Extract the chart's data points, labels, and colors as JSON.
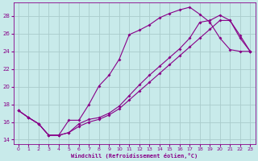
{
  "xlabel": "Windchill (Refroidissement éolien,°C)",
  "background_color": "#c8eaea",
  "grid_color": "#aacccc",
  "line_color": "#880088",
  "xlim": [
    -0.5,
    23.5
  ],
  "ylim": [
    13.5,
    29.5
  ],
  "xticks": [
    0,
    1,
    2,
    3,
    4,
    5,
    6,
    7,
    8,
    9,
    10,
    11,
    12,
    13,
    14,
    15,
    16,
    17,
    18,
    19,
    20,
    21,
    22,
    23
  ],
  "yticks": [
    14,
    16,
    18,
    20,
    22,
    24,
    26,
    28
  ],
  "series1_x": [
    0,
    1,
    2,
    3,
    4,
    5,
    6,
    7,
    8,
    9,
    10,
    11,
    12,
    13,
    14,
    15,
    16,
    17,
    18,
    19,
    20,
    21,
    22,
    23
  ],
  "series1_y": [
    17.3,
    16.5,
    15.8,
    14.5,
    14.5,
    16.2,
    16.2,
    18.0,
    20.1,
    21.3,
    23.1,
    25.9,
    26.4,
    27.0,
    27.8,
    28.3,
    28.7,
    29.0,
    28.2,
    27.3,
    25.5,
    24.2,
    24.0,
    24.0
  ],
  "series2_x": [
    0,
    1,
    2,
    3,
    4,
    5,
    6,
    7,
    8,
    9,
    10,
    11,
    12,
    13,
    14,
    15,
    16,
    17,
    18,
    19,
    20,
    21,
    22,
    23
  ],
  "series2_y": [
    17.3,
    16.5,
    15.8,
    14.5,
    14.5,
    14.8,
    15.8,
    16.3,
    16.5,
    17.0,
    17.8,
    19.0,
    20.2,
    21.3,
    22.3,
    23.3,
    24.3,
    25.5,
    27.3,
    27.5,
    28.1,
    27.5,
    25.8,
    24.0
  ],
  "series3_x": [
    0,
    1,
    2,
    3,
    4,
    5,
    6,
    7,
    8,
    9,
    10,
    11,
    12,
    13,
    14,
    15,
    16,
    17,
    18,
    19,
    20,
    21,
    22,
    23
  ],
  "series3_y": [
    17.3,
    16.5,
    15.8,
    14.5,
    14.5,
    14.8,
    15.5,
    16.0,
    16.3,
    16.8,
    17.5,
    18.5,
    19.5,
    20.5,
    21.5,
    22.5,
    23.5,
    24.5,
    25.5,
    26.5,
    27.5,
    27.5,
    25.5,
    24.0
  ]
}
